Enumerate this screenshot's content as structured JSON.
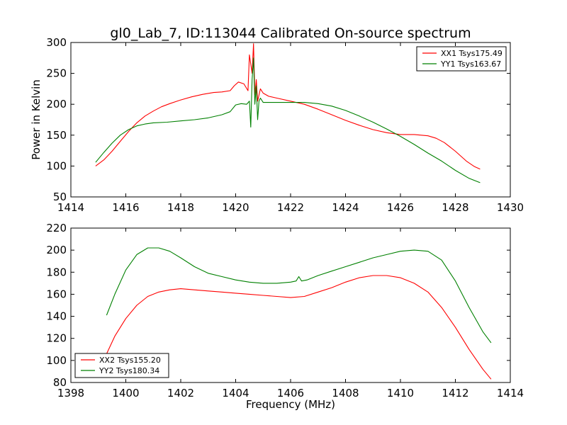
{
  "chart_data": [
    {
      "type": "line",
      "title": "gl0_Lab_7, ID:113044 Calibrated On-source spectrum",
      "xlabel": "",
      "ylabel": "Power in Kelvin",
      "xlim": [
        1414,
        1430
      ],
      "ylim": [
        50,
        300
      ],
      "xticks": [
        1414,
        1416,
        1418,
        1420,
        1422,
        1424,
        1426,
        1428,
        1430
      ],
      "yticks": [
        50,
        100,
        150,
        200,
        250,
        300
      ],
      "legend_position": "top-right",
      "series": [
        {
          "name": "XX1 Tsys175.49",
          "color": "#ff0000",
          "x": [
            1414.9,
            1415.2,
            1415.5,
            1415.8,
            1416.1,
            1416.4,
            1416.7,
            1417.0,
            1417.3,
            1417.6,
            1418.0,
            1418.4,
            1418.8,
            1419.2,
            1419.5,
            1419.8,
            1419.95,
            1420.1,
            1420.3,
            1420.45,
            1420.5,
            1420.6,
            1420.65,
            1420.7,
            1420.75,
            1420.8,
            1420.9,
            1421.0,
            1421.2,
            1421.5,
            1422.0,
            1422.5,
            1423.0,
            1423.5,
            1424.0,
            1424.5,
            1425.0,
            1425.5,
            1426.0,
            1426.5,
            1427.0,
            1427.3,
            1427.6,
            1428.0,
            1428.4,
            1428.7,
            1428.9
          ],
          "y": [
            100,
            110,
            124,
            140,
            156,
            170,
            181,
            189,
            196,
            201,
            207,
            212,
            216,
            219,
            220,
            222,
            230,
            236,
            233,
            222,
            280,
            250,
            298,
            215,
            240,
            205,
            225,
            218,
            213,
            210,
            205,
            200,
            192,
            183,
            174,
            166,
            159,
            154,
            151,
            151,
            149,
            145,
            138,
            124,
            108,
            99,
            95
          ]
        },
        {
          "name": "YY1 Tsys163.67",
          "color": "#008000",
          "x": [
            1414.9,
            1415.2,
            1415.5,
            1415.8,
            1416.1,
            1416.4,
            1416.7,
            1417.0,
            1417.5,
            1418.0,
            1418.5,
            1419.0,
            1419.5,
            1419.8,
            1420.0,
            1420.2,
            1420.4,
            1420.5,
            1420.55,
            1420.6,
            1420.65,
            1420.7,
            1420.75,
            1420.8,
            1420.85,
            1420.9,
            1421.0,
            1421.2,
            1421.5,
            1422.0,
            1422.5,
            1423.0,
            1423.5,
            1424.0,
            1424.5,
            1425.0,
            1425.5,
            1426.0,
            1426.5,
            1427.0,
            1427.5,
            1428.0,
            1428.5,
            1428.9
          ],
          "y": [
            106,
            122,
            137,
            150,
            159,
            165,
            168,
            170,
            171,
            173,
            175,
            178,
            183,
            188,
            199,
            201,
            200,
            205,
            163,
            240,
            275,
            200,
            230,
            175,
            205,
            210,
            203,
            203,
            203,
            203,
            203,
            201,
            197,
            190,
            181,
            171,
            160,
            148,
            135,
            121,
            108,
            93,
            80,
            73
          ]
        }
      ]
    },
    {
      "type": "line",
      "title": "",
      "xlabel": "Frequency (MHz)",
      "ylabel": "",
      "xlim": [
        1398,
        1414
      ],
      "ylim": [
        80,
        220
      ],
      "xticks": [
        1398,
        1400,
        1402,
        1404,
        1406,
        1408,
        1410,
        1412,
        1414
      ],
      "yticks": [
        80,
        100,
        120,
        140,
        160,
        180,
        200,
        220
      ],
      "legend_position": "lower-left",
      "series": [
        {
          "name": "XX2 Tsys155.20",
          "color": "#ff0000",
          "x": [
            1399.3,
            1399.6,
            1400.0,
            1400.4,
            1400.8,
            1401.2,
            1401.6,
            1402.0,
            1402.5,
            1403.0,
            1403.5,
            1404.0,
            1404.5,
            1405.0,
            1405.5,
            1406.0,
            1406.5,
            1407.0,
            1407.5,
            1408.0,
            1408.5,
            1409.0,
            1409.5,
            1410.0,
            1410.5,
            1411.0,
            1411.5,
            1412.0,
            1412.5,
            1413.0,
            1413.3
          ],
          "y": [
            106,
            122,
            138,
            150,
            158,
            162,
            164,
            165,
            164,
            163,
            162,
            161,
            160,
            159,
            158,
            157,
            158,
            162,
            166,
            171,
            175,
            177,
            177,
            175,
            170,
            162,
            148,
            130,
            110,
            92,
            83
          ]
        },
        {
          "name": "YY2 Tsys180.34",
          "color": "#008000",
          "x": [
            1399.3,
            1399.6,
            1400.0,
            1400.4,
            1400.8,
            1401.2,
            1401.6,
            1402.0,
            1402.5,
            1403.0,
            1403.5,
            1404.0,
            1404.5,
            1405.0,
            1405.5,
            1406.0,
            1406.2,
            1406.3,
            1406.4,
            1406.6,
            1407.0,
            1407.5,
            1408.0,
            1408.5,
            1409.0,
            1409.5,
            1410.0,
            1410.5,
            1411.0,
            1411.5,
            1412.0,
            1412.5,
            1413.0,
            1413.3
          ],
          "y": [
            141,
            160,
            182,
            196,
            202,
            202,
            199,
            193,
            185,
            179,
            176,
            173,
            171,
            170,
            170,
            171,
            172,
            176,
            172,
            173,
            177,
            181,
            185,
            189,
            193,
            196,
            199,
            200,
            199,
            191,
            172,
            148,
            126,
            116
          ]
        }
      ]
    }
  ]
}
